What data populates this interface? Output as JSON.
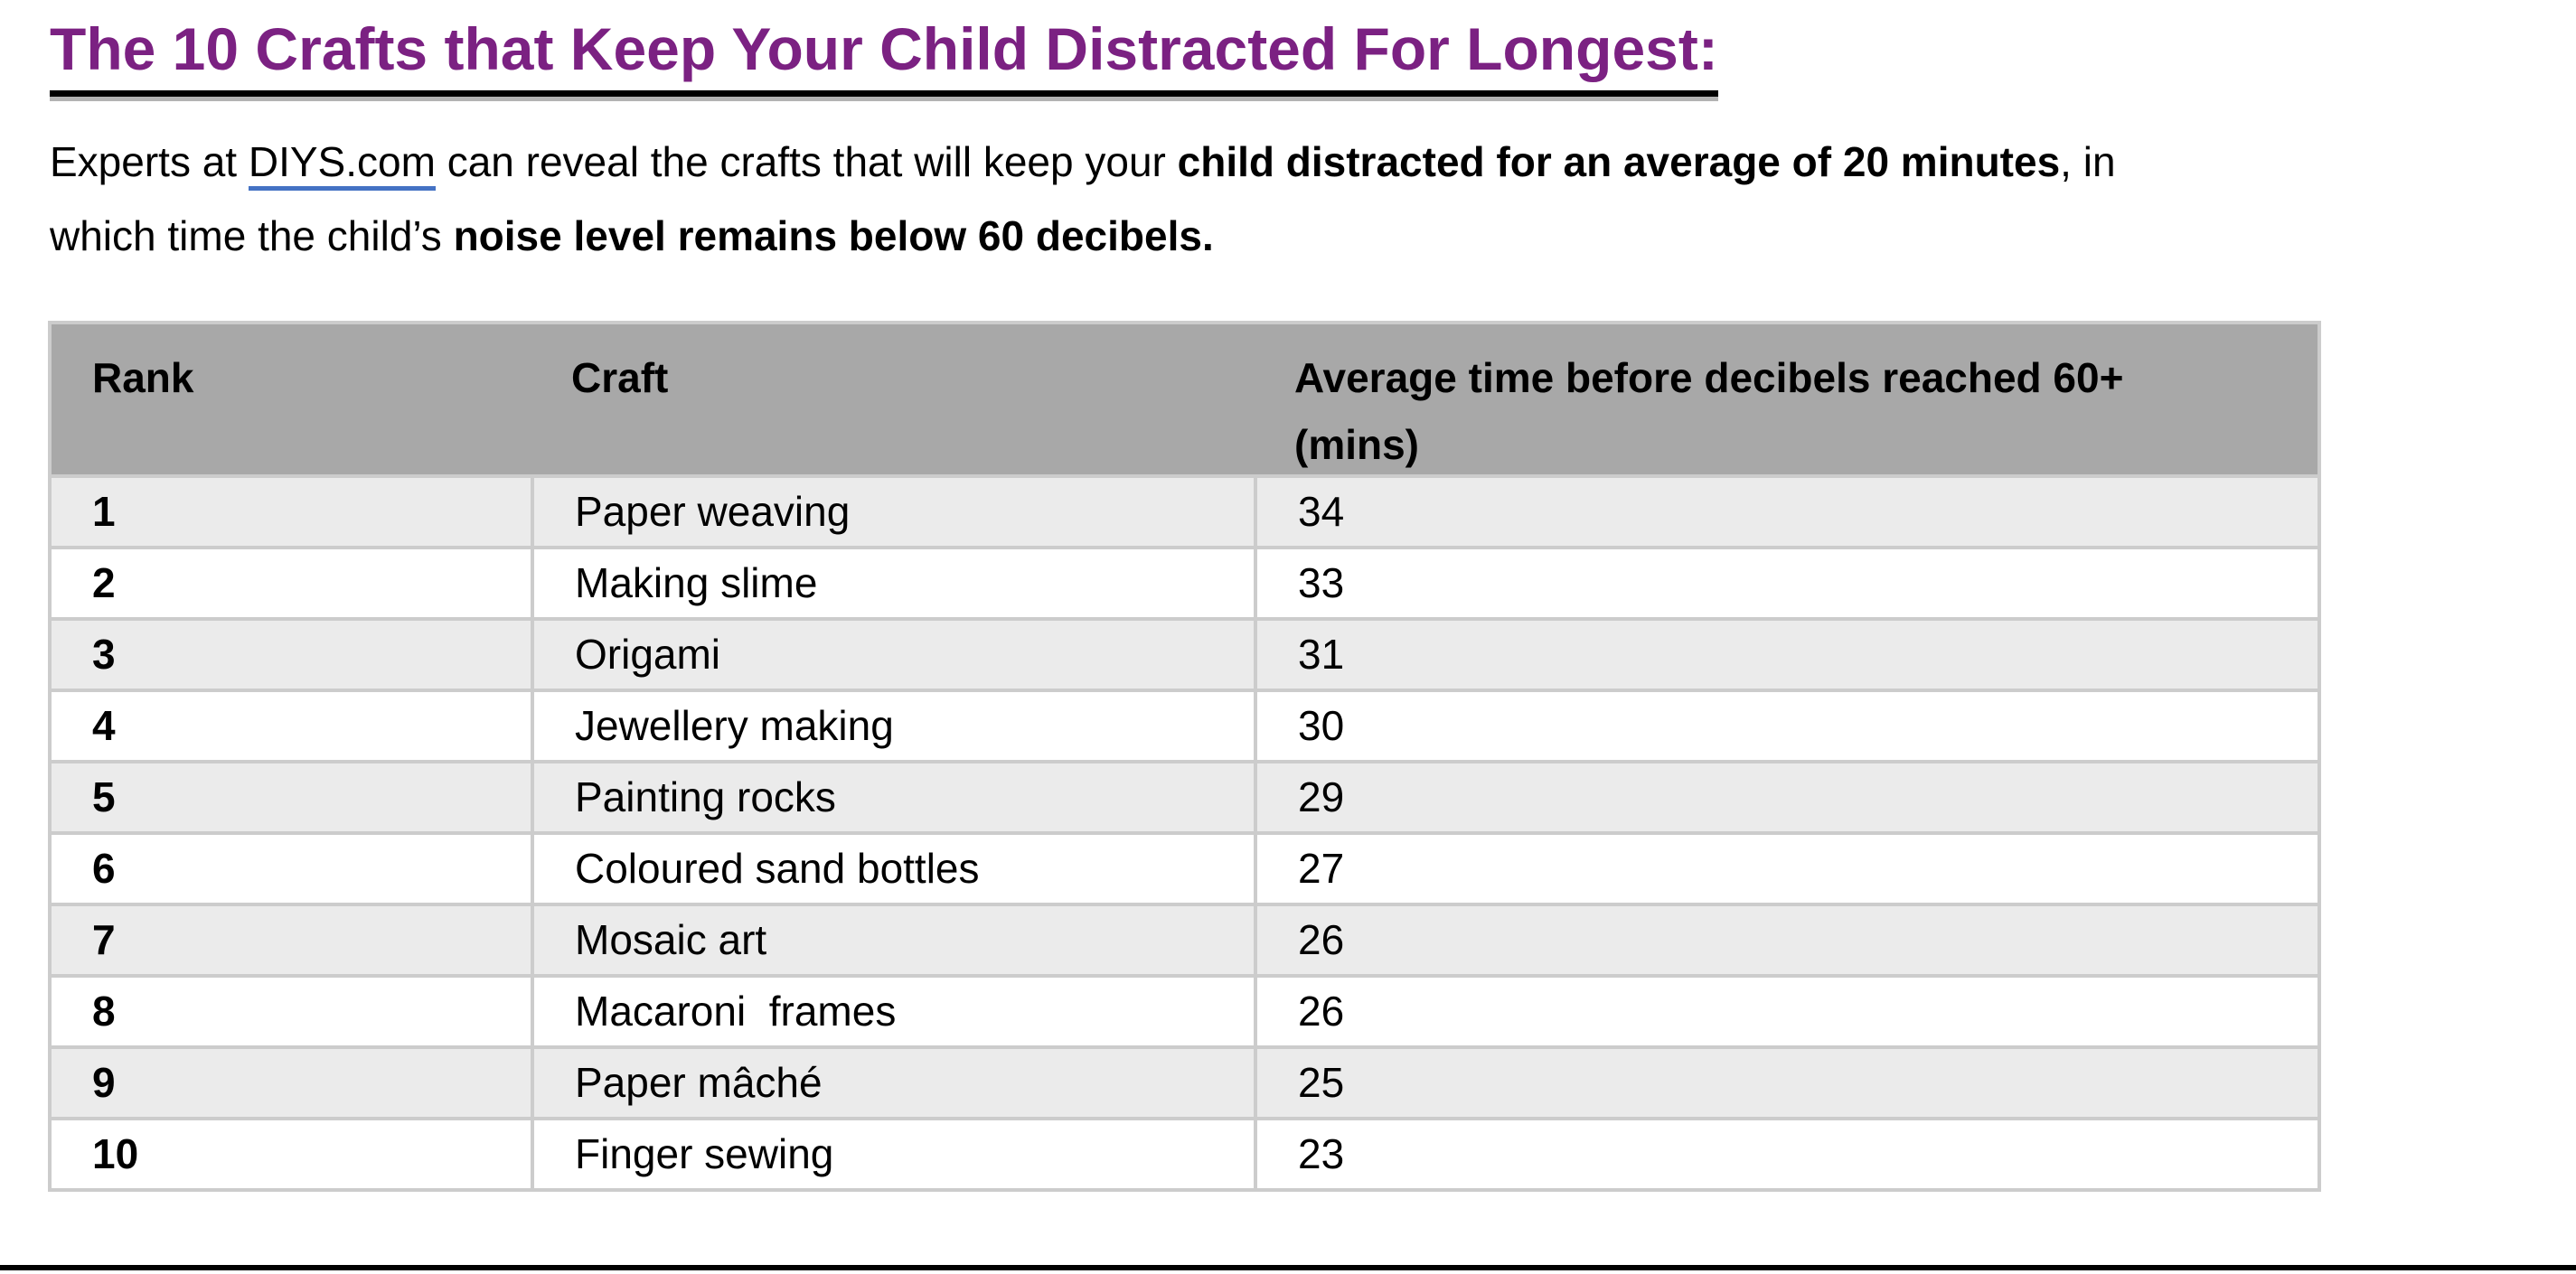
{
  "colors": {
    "title-purple": "#7B2182",
    "header-gray": "#A8A8A8",
    "row-alt-gray": "#EBEBEB",
    "border-gray": "#CCCCCC",
    "link-blue": "#4472C4",
    "underline-black": "#000000",
    "underline-shadow": "#B3B3B3",
    "text-black": "#000000",
    "page-white": "#FFFFFF"
  },
  "title": {
    "text": "The 10 Crafts that Keep Your Child Distracted For Longest:"
  },
  "intro": {
    "segments": [
      {
        "t": "Experts at "
      },
      {
        "t": "DIYS.com",
        "style": "link"
      },
      {
        "t": " can reveal the crafts that will keep your "
      },
      {
        "t": "child distracted for an average of 20 minutes",
        "style": "bold"
      },
      {
        "t": ", in"
      },
      {
        "br": true
      },
      {
        "t": "which time the child’s "
      },
      {
        "t": "noise level remains below 60 decibels.",
        "style": "bold"
      }
    ]
  },
  "table": {
    "columns": {
      "rank": "Rank",
      "craft": "Craft",
      "avg_time": "Average time before decibels reached 60+\n(mins)"
    },
    "rows": [
      {
        "rank": "1",
        "craft": "Paper weaving",
        "mins": "34"
      },
      {
        "rank": "2",
        "craft": "Making slime",
        "mins": "33"
      },
      {
        "rank": "3",
        "craft": "Origami",
        "mins": "31"
      },
      {
        "rank": "4",
        "craft": "Jewellery making",
        "mins": "30"
      },
      {
        "rank": "5",
        "craft": "Painting rocks",
        "mins": "29"
      },
      {
        "rank": "6",
        "craft": "Coloured sand bottles",
        "mins": "27"
      },
      {
        "rank": "7",
        "craft": "Mosaic art",
        "mins": "26"
      },
      {
        "rank": "8",
        "craft": "Macaroni  frames",
        "mins": "26"
      },
      {
        "rank": "9",
        "craft": "Paper mâché",
        "mins": "25"
      },
      {
        "rank": "10",
        "craft": "Finger sewing",
        "mins": "23"
      }
    ]
  }
}
